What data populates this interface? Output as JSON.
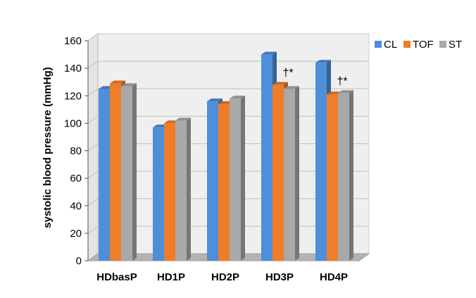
{
  "chart_data": {
    "type": "bar",
    "categories": [
      "HDbasP",
      "HD1P",
      "HD2P",
      "HD3P",
      "HD4P"
    ],
    "series": [
      {
        "name": "CL",
        "values": [
          125,
          97,
          116,
          150,
          144
        ],
        "color": "#4F8ED8"
      },
      {
        "name": "TOF",
        "values": [
          129,
          100,
          114,
          128,
          121
        ],
        "color": "#F07D2A"
      },
      {
        "name": "ST",
        "values": [
          127,
          102,
          118,
          125,
          122
        ],
        "color": "#A9A9A9"
      }
    ],
    "ylabel": "systolic blood pressure (mmHg)",
    "ylim": [
      0,
      160
    ],
    "yticks": [
      0,
      20,
      40,
      60,
      80,
      100,
      120,
      140,
      160
    ],
    "grid": true,
    "legend_position": "top-right",
    "annotations": [
      {
        "category": "HD3P",
        "text": "†*"
      },
      {
        "category": "HD4P",
        "text": "†*"
      }
    ]
  }
}
